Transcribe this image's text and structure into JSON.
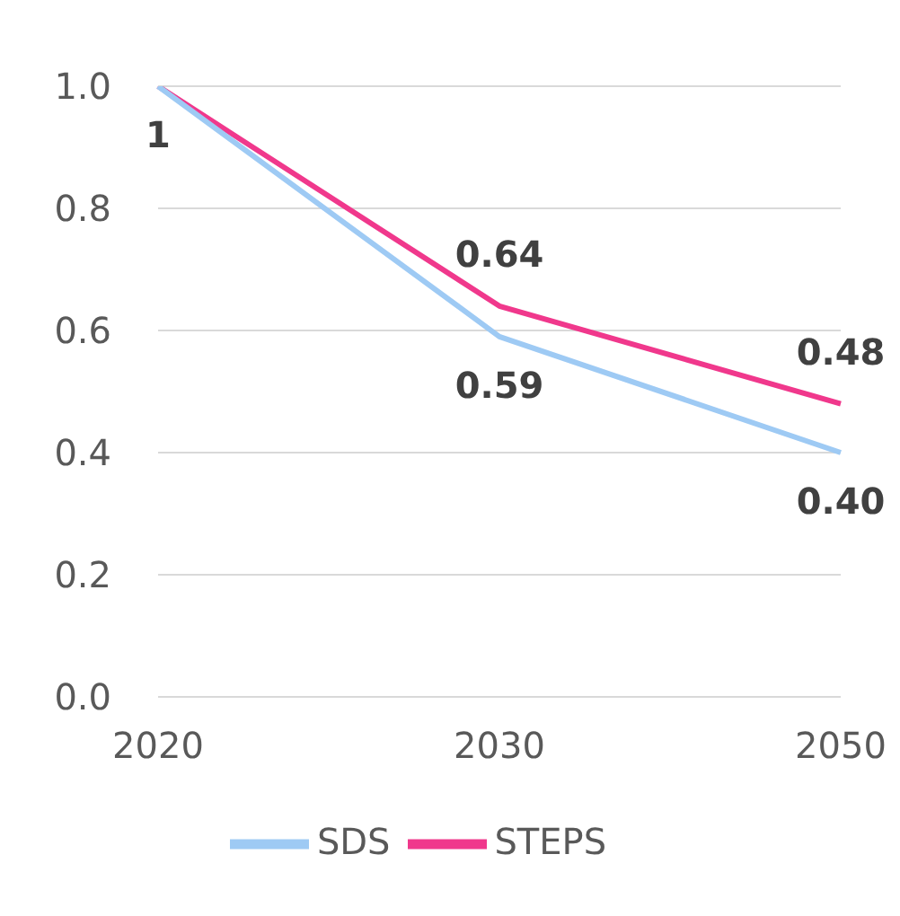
{
  "chart_data": {
    "type": "line",
    "categories": [
      "2020",
      "2030",
      "2050"
    ],
    "series": [
      {
        "name": "STEPS",
        "color": "#f0388c",
        "values": [
          1,
          0.64,
          0.48
        ],
        "value_labels": [
          null,
          "0.64",
          "0.48"
        ]
      },
      {
        "name": "SDS",
        "color": "#9ecaf4",
        "values": [
          1,
          0.59,
          0.4
        ],
        "value_labels": [
          "1",
          "0.59",
          "0.40"
        ]
      }
    ],
    "ylim": [
      0,
      1
    ],
    "yticks": [
      {
        "value": 0,
        "label": "0.0"
      },
      {
        "value": 0.2,
        "label": "0.2"
      },
      {
        "value": 0.4,
        "label": "0.4"
      },
      {
        "value": 0.6,
        "label": "0.6"
      },
      {
        "value": 0.8,
        "label": "0.8"
      },
      {
        "value": 1,
        "label": "1.0"
      }
    ],
    "grid": "y",
    "legend": "bottom",
    "marker": "none",
    "line_style": "solid"
  }
}
